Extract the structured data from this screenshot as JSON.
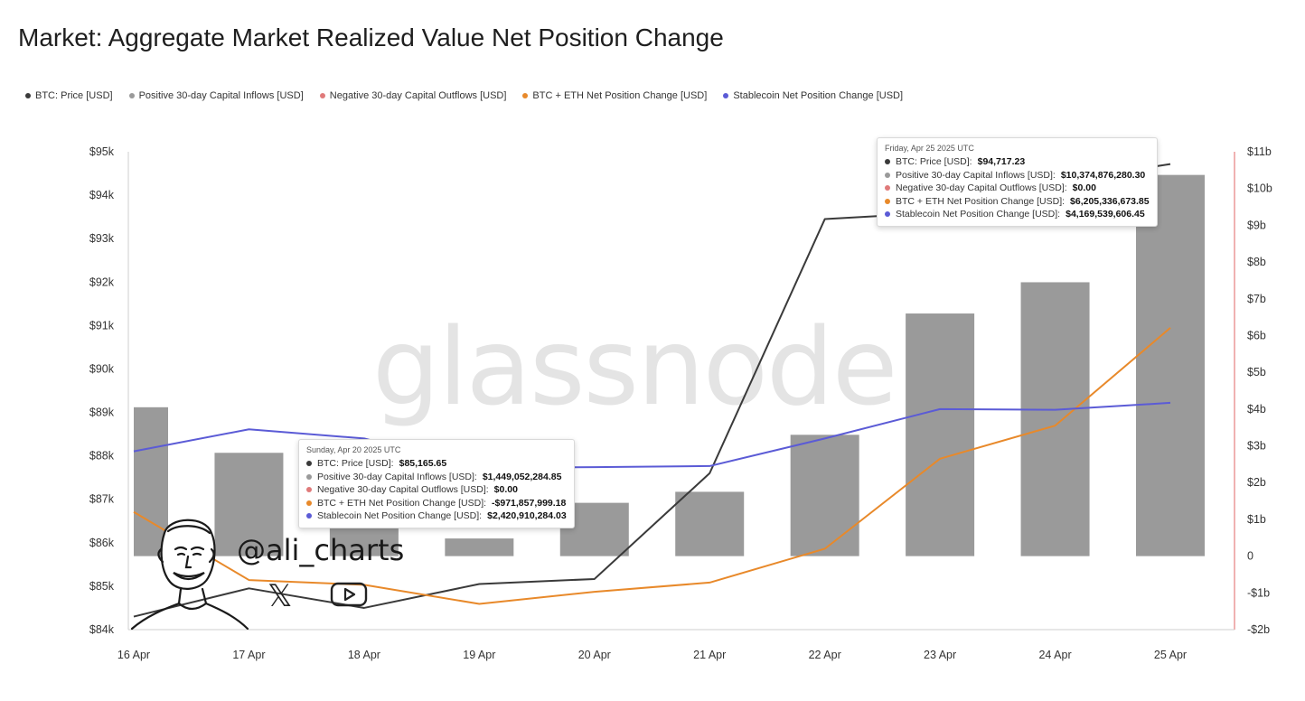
{
  "title": "Market: Aggregate Market Realized Value Net Position Change",
  "legend": [
    {
      "label": "BTC: Price [USD]",
      "color": "#3a3a3a"
    },
    {
      "label": "Positive 30-day Capital Inflows [USD]",
      "color": "#9a9a9a"
    },
    {
      "label": "Negative 30-day Capital Outflows [USD]",
      "color": "#e07a7a"
    },
    {
      "label": "BTC + ETH Net Position Change [USD]",
      "color": "#e8892a"
    },
    {
      "label": "Stablecoin Net Position Change [USD]",
      "color": "#5b5bd6"
    }
  ],
  "watermark": "glassnode",
  "branding": {
    "handle": "@ali_charts",
    "x_icon": "x-logo-icon",
    "youtube_icon": "youtube-play-icon"
  },
  "tooltips": [
    {
      "date": "Sunday, Apr 20 2025 UTC",
      "rows": [
        {
          "label": "BTC: Price [USD]:",
          "value": "$85,165.65",
          "color": "#3a3a3a"
        },
        {
          "label": "Positive 30-day Capital Inflows [USD]:",
          "value": "$1,449,052,284.85",
          "color": "#9a9a9a"
        },
        {
          "label": "Negative 30-day Capital Outflows [USD]:",
          "value": "$0.00",
          "color": "#e07a7a"
        },
        {
          "label": "BTC + ETH Net Position Change [USD]:",
          "value": "-$971,857,999.18",
          "color": "#e8892a"
        },
        {
          "label": "Stablecoin Net Position Change [USD]:",
          "value": "$2,420,910,284.03",
          "color": "#5b5bd6"
        }
      ]
    },
    {
      "date": "Friday, Apr 25 2025 UTC",
      "rows": [
        {
          "label": "BTC: Price [USD]:",
          "value": "$94,717.23",
          "color": "#3a3a3a"
        },
        {
          "label": "Positive 30-day Capital Inflows [USD]:",
          "value": "$10,374,876,280.30",
          "color": "#9a9a9a"
        },
        {
          "label": "Negative 30-day Capital Outflows [USD]:",
          "value": "$0.00",
          "color": "#e07a7a"
        },
        {
          "label": "BTC + ETH Net Position Change [USD]:",
          "value": "$6,205,336,673.85",
          "color": "#e8892a"
        },
        {
          "label": "Stablecoin Net Position Change [USD]:",
          "value": "$4,169,539,606.45",
          "color": "#5b5bd6"
        }
      ]
    }
  ],
  "chart_data": {
    "type": "bar",
    "title": "Market: Aggregate Market Realized Value Net Position Change",
    "categories": [
      "16 Apr",
      "17 Apr",
      "18 Apr",
      "19 Apr",
      "20 Apr",
      "21 Apr",
      "22 Apr",
      "23 Apr",
      "24 Apr",
      "25 Apr"
    ],
    "y_left": {
      "ylim": [
        84000,
        95000
      ],
      "ticks": [
        84000,
        85000,
        86000,
        87000,
        88000,
        89000,
        90000,
        91000,
        92000,
        93000,
        94000,
        95000
      ],
      "tick_labels": [
        "$84k",
        "$85k",
        "$86k",
        "$87k",
        "$88k",
        "$89k",
        "$90k",
        "$91k",
        "$92k",
        "$93k",
        "$94k",
        "$95k"
      ]
    },
    "y_right": {
      "ylim": [
        -2,
        11
      ],
      "unit": "billion USD",
      "ticks": [
        -2,
        -1,
        0,
        1,
        2,
        3,
        4,
        5,
        6,
        7,
        8,
        9,
        10,
        11
      ],
      "tick_labels": [
        "-$2b",
        "-$1b",
        "0",
        "$1b",
        "$2b",
        "$3b",
        "$4b",
        "$5b",
        "$6b",
        "$7b",
        "$8b",
        "$9b",
        "$10b",
        "$11b"
      ]
    },
    "series": [
      {
        "name": "BTC: Price [USD]",
        "type": "line",
        "axis": "left",
        "color": "#3a3a3a",
        "values": [
          84300,
          84950,
          84500,
          85050,
          85165.65,
          87600,
          93450,
          93600,
          94300,
          94717.23
        ]
      },
      {
        "name": "Positive 30-day Capital Inflows [USD]",
        "type": "bar",
        "axis": "right",
        "color": "#9a9a9a",
        "values": [
          4.05,
          2.81,
          1.03,
          0.48,
          1.45,
          1.75,
          3.3,
          6.6,
          7.45,
          10.37
        ]
      },
      {
        "name": "Negative 30-day Capital Outflows [USD]",
        "type": "bar",
        "axis": "right",
        "color": "#e07a7a",
        "values": [
          0,
          0,
          0,
          0,
          0,
          0,
          0,
          0,
          0,
          0
        ]
      },
      {
        "name": "BTC + ETH Net Position Change [USD]",
        "type": "line",
        "axis": "right",
        "color": "#e8892a",
        "values": [
          1.2,
          -0.65,
          -0.78,
          -1.3,
          -0.97,
          -0.72,
          0.2,
          2.65,
          3.55,
          6.21
        ]
      },
      {
        "name": "Stablecoin Net Position Change [USD]",
        "type": "line",
        "axis": "right",
        "color": "#5b5bd6",
        "values": [
          2.85,
          3.45,
          3.2,
          2.4,
          2.42,
          2.45,
          3.2,
          4.0,
          3.98,
          4.17
        ]
      }
    ],
    "grid": false,
    "legend_position": "top-left"
  }
}
